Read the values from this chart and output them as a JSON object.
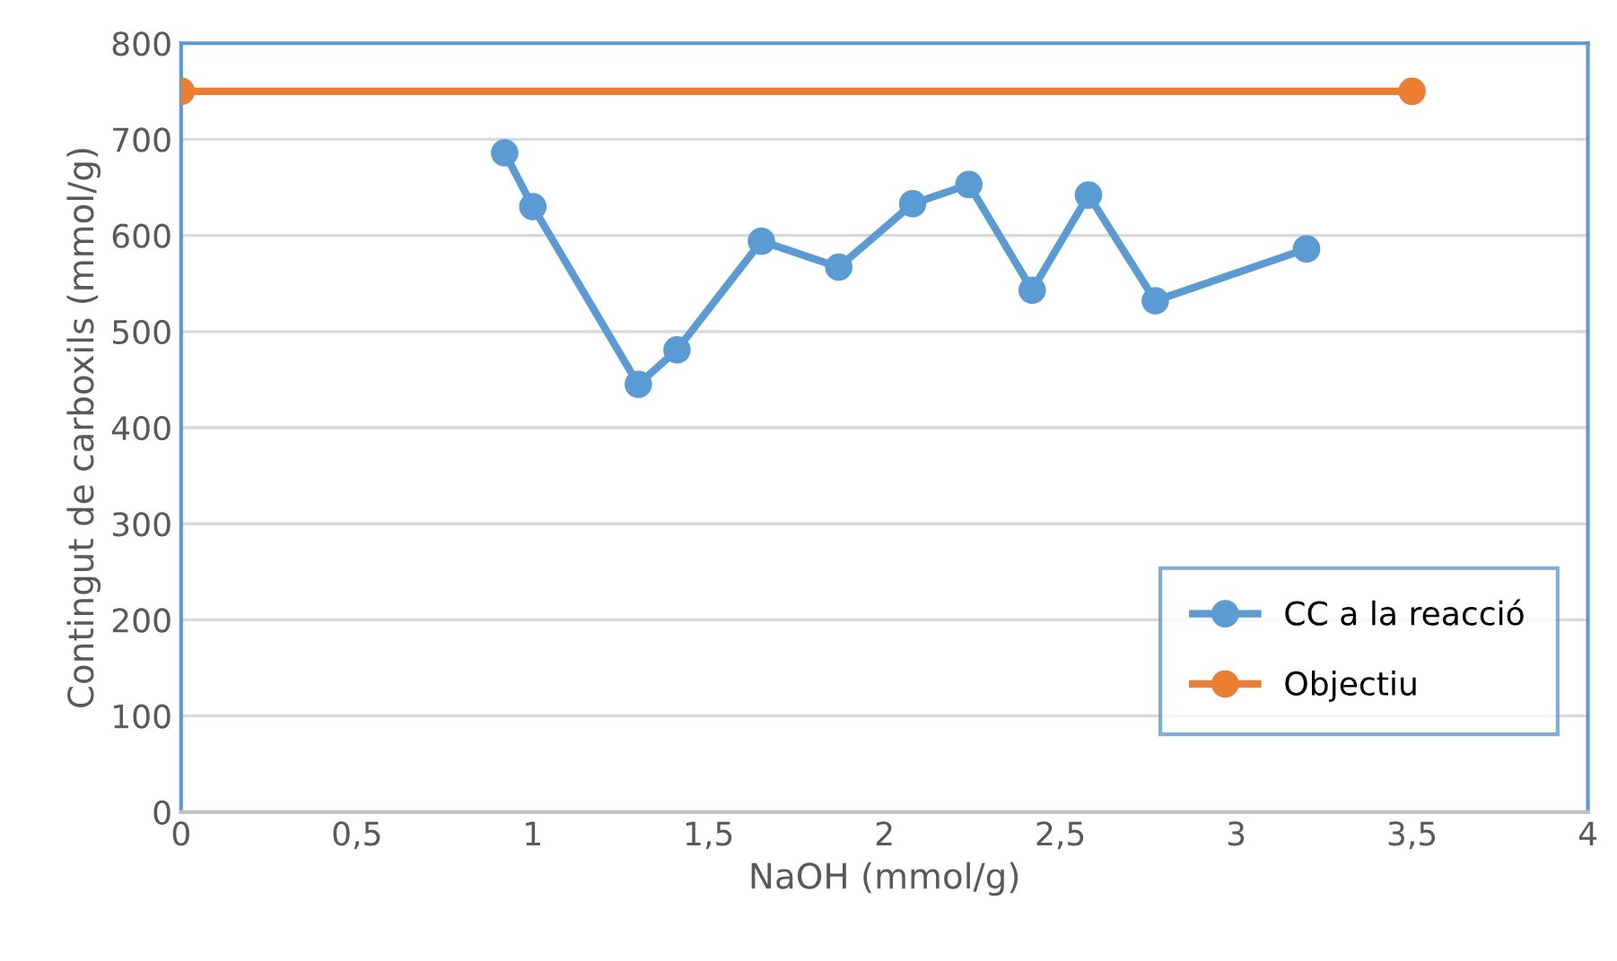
{
  "chart_data": {
    "type": "line",
    "xlabel": "NaOH (mmol/g)",
    "ylabel": "Contingut de carboxils (mmol/g)",
    "series": [
      {
        "name": "CC a la reacció",
        "color": "#5b9bd5",
        "x": [
          0.92,
          1.0,
          1.3,
          1.41,
          1.65,
          1.87,
          2.08,
          2.24,
          2.42,
          2.58,
          2.77,
          3.2
        ],
        "values": [
          686,
          630,
          445,
          481,
          594,
          567,
          633,
          653,
          543,
          642,
          532,
          586
        ]
      },
      {
        "name": "Objectiu",
        "color": "#ed7d31",
        "x": [
          0,
          3.5
        ],
        "values": [
          750,
          750
        ]
      }
    ],
    "xlim": [
      0,
      4
    ],
    "xticks": [
      0,
      {
        "value": 0.5,
        "label": "0,5"
      },
      1,
      {
        "value": 1.5,
        "label": "1,5"
      },
      2,
      {
        "value": 2.5,
        "label": "2,5"
      },
      3,
      {
        "value": 3.5,
        "label": "3,5"
      },
      4
    ],
    "ylim": [
      0,
      800
    ],
    "yticks": [
      0,
      100,
      200,
      300,
      400,
      500,
      600,
      700,
      800
    ],
    "grid": "y",
    "legend": "bottom right",
    "marker": "circle",
    "line_style": "solid"
  }
}
